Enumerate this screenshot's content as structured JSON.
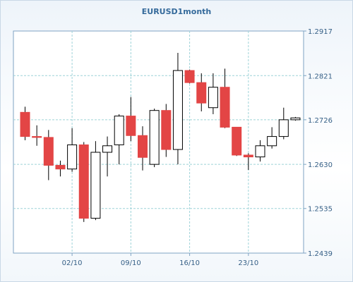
{
  "chart_data": {
    "type": "candlestick",
    "title": "EURUSD1month",
    "x_tick_labels": [
      "02/10",
      "09/10",
      "16/10",
      "23/10"
    ],
    "y_tick_labels": [
      "1.2917",
      "1.2821",
      "1.2726",
      "1.2630",
      "1.2535",
      "1.2439"
    ],
    "ylim": [
      1.2439,
      1.2917
    ],
    "grid": true,
    "colors": {
      "up": "#ffffff",
      "down": "#e34545",
      "outline": "#000000",
      "grid": "#9ed3d8",
      "axis_text": "#355f86",
      "title": "#356a9b"
    },
    "candles": [
      {
        "open": 1.2742,
        "high": 1.2754,
        "low": 1.2682,
        "close": 1.269
      },
      {
        "open": 1.269,
        "high": 1.2714,
        "low": 1.267,
        "close": 1.2688
      },
      {
        "open": 1.2688,
        "high": 1.2704,
        "low": 1.2596,
        "close": 1.2628
      },
      {
        "open": 1.2628,
        "high": 1.2638,
        "low": 1.2604,
        "close": 1.262
      },
      {
        "open": 1.262,
        "high": 1.2708,
        "low": 1.2614,
        "close": 1.2672
      },
      {
        "open": 1.2672,
        "high": 1.2678,
        "low": 1.2506,
        "close": 1.2514
      },
      {
        "open": 1.2514,
        "high": 1.268,
        "low": 1.251,
        "close": 1.2656
      },
      {
        "open": 1.2656,
        "high": 1.269,
        "low": 1.2604,
        "close": 1.267
      },
      {
        "open": 1.2672,
        "high": 1.2738,
        "low": 1.263,
        "close": 1.2734
      },
      {
        "open": 1.2734,
        "high": 1.2775,
        "low": 1.268,
        "close": 1.2692
      },
      {
        "open": 1.2692,
        "high": 1.2712,
        "low": 1.2617,
        "close": 1.2645
      },
      {
        "open": 1.263,
        "high": 1.275,
        "low": 1.2624,
        "close": 1.2746
      },
      {
        "open": 1.2746,
        "high": 1.276,
        "low": 1.2646,
        "close": 1.2662
      },
      {
        "open": 1.2662,
        "high": 1.287,
        "low": 1.263,
        "close": 1.2832
      },
      {
        "open": 1.2832,
        "high": 1.2834,
        "low": 1.2804,
        "close": 1.2806
      },
      {
        "open": 1.2806,
        "high": 1.2826,
        "low": 1.2744,
        "close": 1.2762
      },
      {
        "open": 1.2752,
        "high": 1.2826,
        "low": 1.2738,
        "close": 1.2796
      },
      {
        "open": 1.2796,
        "high": 1.2836,
        "low": 1.2708,
        "close": 1.271
      },
      {
        "open": 1.271,
        "high": 1.271,
        "low": 1.2648,
        "close": 1.265
      },
      {
        "open": 1.265,
        "high": 1.2654,
        "low": 1.2618,
        "close": 1.2646
      },
      {
        "open": 1.2646,
        "high": 1.2682,
        "low": 1.2636,
        "close": 1.267
      },
      {
        "open": 1.267,
        "high": 1.271,
        "low": 1.2664,
        "close": 1.269
      },
      {
        "open": 1.269,
        "high": 1.2752,
        "low": 1.2684,
        "close": 1.2726
      },
      {
        "open": 1.2726,
        "high": 1.2732,
        "low": 1.2724,
        "close": 1.273
      }
    ]
  }
}
